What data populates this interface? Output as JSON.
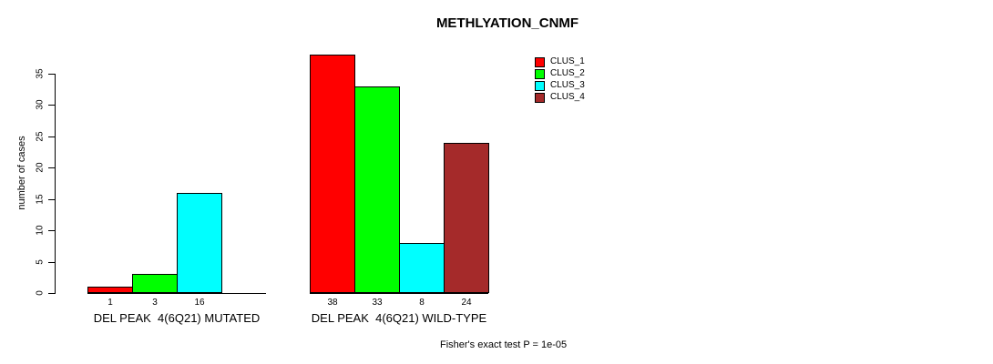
{
  "chart_data": {
    "type": "bar",
    "title": "METHLYATION_CNMF",
    "ylabel": "number of cases",
    "xlabel": "",
    "ylim": [
      0,
      38
    ],
    "yticks": [
      0,
      5,
      10,
      15,
      20,
      25,
      30,
      35
    ],
    "grid": false,
    "legend_position": "top-right",
    "legend": [
      {
        "label": "CLUS_1",
        "color": "#ff0000"
      },
      {
        "label": "CLUS_2",
        "color": "#00ff00"
      },
      {
        "label": "CLUS_3",
        "color": "#00ffff"
      },
      {
        "label": "CLUS_4",
        "color": "#a52a2a"
      }
    ],
    "categories": [
      "CLUS_1",
      "CLUS_2",
      "CLUS_3",
      "CLUS_4"
    ],
    "groups": [
      {
        "label": "DEL PEAK  4(6Q21) MUTATED",
        "values": [
          1,
          3,
          16,
          0
        ],
        "bar_labels": [
          "1",
          "3",
          "16",
          ""
        ]
      },
      {
        "label": "DEL PEAK  4(6Q21) WILD-TYPE",
        "values": [
          38,
          33,
          8,
          24
        ],
        "bar_labels": [
          "38",
          "33",
          "8",
          "24"
        ]
      }
    ],
    "annotation": "Fisher's exact test P = 1e-05",
    "colors": {
      "bar_border": "#000000",
      "axis": "#000000",
      "text": "#000000",
      "background": "#ffffff"
    }
  }
}
